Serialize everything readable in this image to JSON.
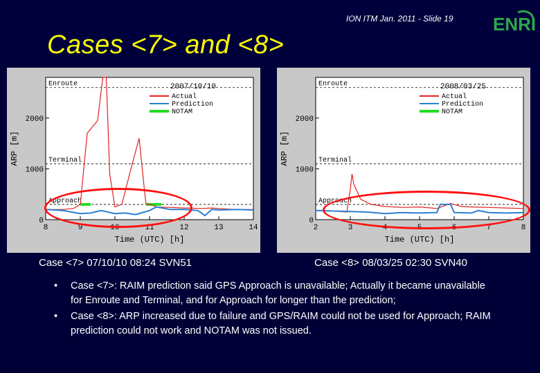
{
  "slide": {
    "footer": "ION ITM Jan. 2011 - Slide 19",
    "logo_text": "ENRI",
    "title": "Cases <7> and <8>",
    "colors": {
      "background": "#000038",
      "title": "#ffff00",
      "ring": "#ff1010"
    }
  },
  "captions": {
    "case7": "Case <7>  07/10/10 08:24 SVN51",
    "case8": "Case <8>  08/03/25 02:30 SVN40"
  },
  "bullets": [
    {
      "dot": "•",
      "text": "Case <7>: RAIM prediction said GPS Approach is unavailable; Actually it became unavailable for Enroute and Terminal, and for Approach for longer than the prediction;"
    },
    {
      "dot": "•",
      "text": "Case <8>: ARP increased due to failure and GPS/RAIM could not be used for Approach; RAIM prediction could not work and NOTAM was not issued."
    }
  ],
  "chart_data": [
    {
      "type": "line",
      "date_label": "2007/10/10",
      "xlabel": "Time (UTC) [h]",
      "ylabel": "ARP [m]",
      "xlim": [
        8,
        14
      ],
      "ylim": [
        0,
        2800
      ],
      "xticks": [
        "8",
        "9",
        "10",
        "11",
        "12",
        "13",
        "14"
      ],
      "yticks": [
        "0",
        "1000",
        "2000"
      ],
      "thresholds": [
        {
          "label": "Enroute",
          "value": 2600
        },
        {
          "label": "Terminal",
          "value": 1100
        },
        {
          "label": "Approach",
          "value": 300
        }
      ],
      "legend": [
        "Actual",
        "Prediction",
        "NOTAM"
      ],
      "series": [
        {
          "name": "Actual",
          "color": "#e02020",
          "x": [
            8,
            8.5,
            8.8,
            9.0,
            9.2,
            9.5,
            9.65,
            9.75,
            9.85,
            10.0,
            10.2,
            10.5,
            10.7,
            10.85,
            10.9,
            11.0,
            11.1,
            11.2,
            11.6,
            12.0,
            12.5,
            12.8,
            13.0,
            13.5,
            14.0
          ],
          "y": [
            200,
            200,
            220,
            300,
            1700,
            1950,
            2800,
            2800,
            900,
            250,
            300,
            1100,
            1600,
            600,
            300,
            300,
            280,
            250,
            240,
            230,
            220,
            230,
            220,
            200,
            200
          ]
        },
        {
          "name": "Prediction",
          "color": "#2a7fd0",
          "x": [
            8,
            8.5,
            9.0,
            9.3,
            9.6,
            10.0,
            10.3,
            10.6,
            11.0,
            11.2,
            11.6,
            12.0,
            12.4,
            12.6,
            12.8,
            13.0,
            13.5,
            14.0
          ],
          "y": [
            200,
            180,
            120,
            130,
            180,
            120,
            130,
            100,
            180,
            250,
            200,
            200,
            180,
            80,
            200,
            190,
            200,
            190
          ]
        }
      ],
      "notam": [
        [
          9.0,
          9.3
        ],
        [
          10.9,
          11.35
        ]
      ]
    },
    {
      "type": "line",
      "date_label": "2008/03/25",
      "xlabel": "Time (UTC) [h]",
      "ylabel": "ARP [m]",
      "xlim": [
        2,
        8
      ],
      "ylim": [
        0,
        2800
      ],
      "xticks": [
        "2",
        "3",
        "4",
        "5",
        "6",
        "7",
        "8"
      ],
      "yticks": [
        "0",
        "1000",
        "2000"
      ],
      "thresholds": [
        {
          "label": "Enroute",
          "value": 2600
        },
        {
          "label": "Terminal",
          "value": 1100
        },
        {
          "label": "Approach",
          "value": 300
        }
      ],
      "legend": [
        "Actual",
        "Prediction",
        "NOTAM"
      ],
      "series": [
        {
          "name": "Actual",
          "color": "#e02020",
          "x": [
            2,
            2.5,
            2.9,
            3.0,
            3.05,
            3.1,
            3.3,
            3.6,
            4.0,
            4.5,
            5.0,
            5.5,
            5.9,
            6.2,
            6.5,
            7.0,
            7.5,
            8.0
          ],
          "y": [
            180,
            170,
            150,
            600,
            900,
            700,
            400,
            300,
            260,
            240,
            250,
            220,
            320,
            260,
            250,
            240,
            230,
            220
          ]
        },
        {
          "name": "Prediction",
          "color": "#2a7fd0",
          "x": [
            2,
            2.5,
            3.0,
            3.5,
            4.0,
            4.5,
            5.0,
            5.5,
            5.6,
            5.9,
            6.0,
            6.5,
            6.7,
            7.0,
            7.5,
            8.0
          ],
          "y": [
            180,
            170,
            160,
            150,
            120,
            140,
            130,
            140,
            300,
            300,
            140,
            130,
            180,
            140,
            130,
            140
          ]
        }
      ],
      "notam": []
    }
  ]
}
